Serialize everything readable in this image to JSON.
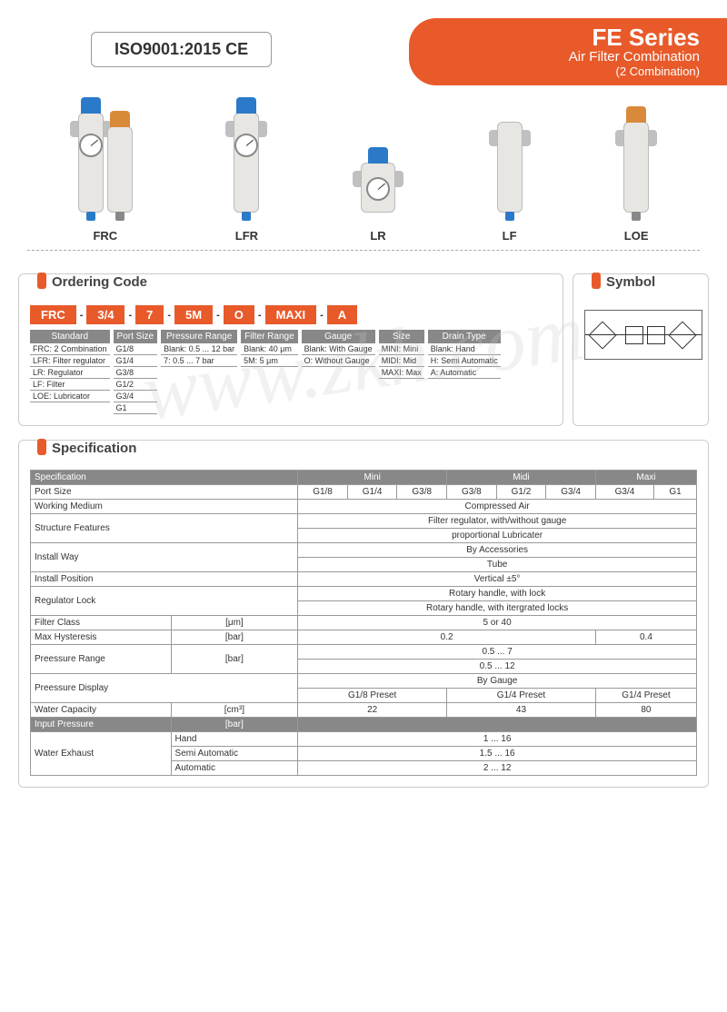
{
  "header": {
    "iso": "ISO9001:2015   CE",
    "series": "FE Series",
    "sub1": "Air Filter Combination",
    "sub2": "(2 Combination)"
  },
  "watermark": "www.zkh.com",
  "products": {
    "frc": "FRC",
    "lfr": "LFR",
    "lr": "LR",
    "lf": "LF",
    "loe": "LOE"
  },
  "ordering": {
    "title": "Ordering Code",
    "segs": [
      "FRC",
      "3/4",
      "7",
      "5M",
      "O",
      "MAXI",
      "A"
    ],
    "cols": [
      {
        "head": "Standard",
        "rows": [
          "FRC: 2 Combination",
          "LFR: Filter regulator",
          "LR: Regulator",
          "LF: Filter",
          "LOE: Lubricator"
        ]
      },
      {
        "head": "Port Size",
        "rows": [
          "G1/8",
          "G1/4",
          "G3/8",
          "G1/2",
          "G3/4",
          "G1"
        ]
      },
      {
        "head": "Pressure Range",
        "rows": [
          "Blank: 0.5 ... 12 bar",
          "7: 0.5 ... 7 bar"
        ]
      },
      {
        "head": "Filter Range",
        "rows": [
          "Blank: 40 μm",
          "5M: 5 μm"
        ]
      },
      {
        "head": "Gauge",
        "rows": [
          "Blank: With Gauge",
          "O: Without Gauge"
        ]
      },
      {
        "head": "Size",
        "rows": [
          "MINI: Mini",
          "MIDI: Mid",
          "MAXI: Max"
        ]
      },
      {
        "head": "Drain Type",
        "rows": [
          "Blank: Hand",
          "H: Semi Automatic",
          "A: Automatic"
        ]
      }
    ]
  },
  "symbol": {
    "title": "Symbol"
  },
  "spec": {
    "title": "Specification",
    "headers": {
      "spec": "Specification",
      "mini": "Mini",
      "midi": "Midi",
      "maxi": "Maxi"
    },
    "rows": {
      "port_size": {
        "label": "Port Size",
        "vals": [
          "G1/8",
          "G1/4",
          "G3/8",
          "G3/8",
          "G1/2",
          "G3/4",
          "G3/4",
          "G1"
        ]
      },
      "working_medium": {
        "label": "Working Medium",
        "val": "Compressed Air"
      },
      "structure": {
        "label": "Structure Features",
        "val1": "Filter regulator, with/without gauge",
        "val2": "proportional Lubricater"
      },
      "install_way": {
        "label": "Install Way",
        "val1": "By Accessories",
        "val2": "Tube"
      },
      "install_pos": {
        "label": "Install Position",
        "val": "Vertical ±5°"
      },
      "reg_lock": {
        "label": "Regulator Lock",
        "val1": "Rotary handle, with lock",
        "val2": "Rotary handle, with itergrated locks"
      },
      "filter_class": {
        "label": "Filter Class",
        "unit": "[μm]",
        "val": "5 or 40"
      },
      "max_hyst": {
        "label": "Max Hysteresis",
        "unit": "[bar]",
        "v1": "0.2",
        "v2": "0.4"
      },
      "press_range": {
        "label": "Preessure Range",
        "unit": "[bar]",
        "v1": "0.5 ... 7",
        "v2": "0.5 ... 12"
      },
      "press_disp": {
        "label": "Preessure Display",
        "val": "By Gauge",
        "p1": "G1/8 Preset",
        "p2": "G1/4 Preset",
        "p3": "G1/4 Preset"
      },
      "water_cap": {
        "label": "Water Capacity",
        "unit": "[cm³]",
        "v1": "22",
        "v2": "43",
        "v3": "80"
      },
      "input_press": {
        "label": "Input Pressure",
        "unit": "[bar]"
      },
      "water_ex": {
        "label": "Water Exhaust",
        "hand": "Hand",
        "hand_v": "1 ... 16",
        "semi": "Semi Automatic",
        "semi_v": "1.5 ... 16",
        "auto": "Automatic",
        "auto_v": "2 ... 12"
      }
    }
  },
  "colors": {
    "accent": "#e85a2a",
    "gray_head": "#888888",
    "border": "#999999"
  }
}
